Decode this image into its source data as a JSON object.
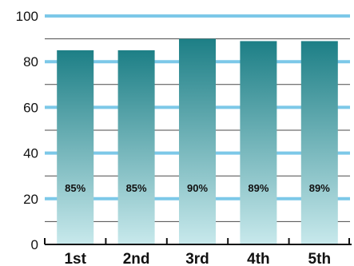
{
  "chart_data": {
    "type": "bar",
    "categories": [
      "1st",
      "2nd",
      "3rd",
      "4th",
      "5th"
    ],
    "values": [
      85,
      85,
      90,
      89,
      89
    ],
    "data_labels": [
      "85%",
      "85%",
      "90%",
      "89%",
      "89%"
    ],
    "yticks": [
      0,
      20,
      40,
      60,
      80,
      100
    ],
    "ylim": [
      0,
      100
    ],
    "title": "",
    "xlabel": "",
    "ylabel": "",
    "grid": true,
    "legend": "none",
    "colors": {
      "bar_top": "#1d7f86",
      "bar_bottom": "#c8e9ec",
      "gridline_major": "#7cc8e8",
      "gridline_minor": "#4a4a4a",
      "axis": "#111111"
    }
  }
}
